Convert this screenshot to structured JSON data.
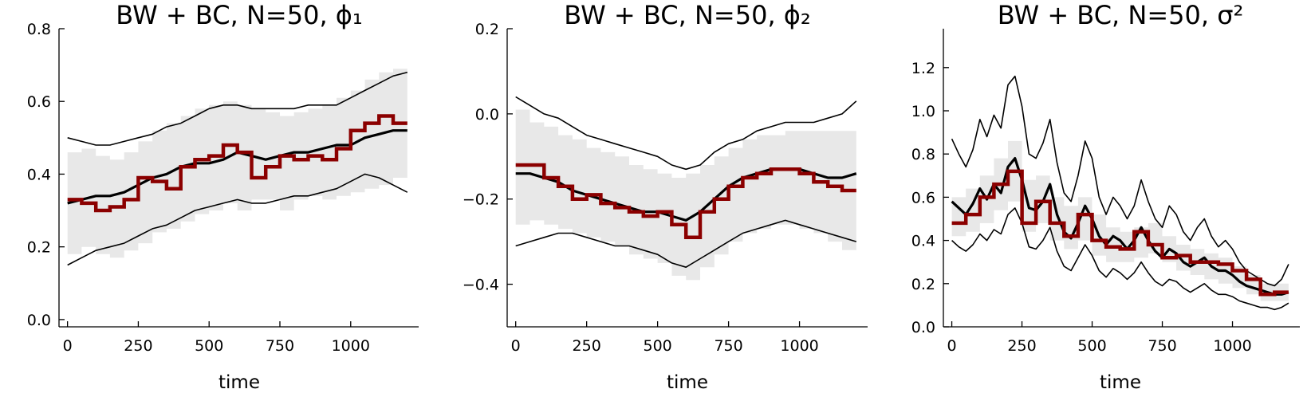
{
  "chart_data": [
    {
      "type": "line",
      "title": "BW + BC, N=50, ϕ₁",
      "xlabel": "time",
      "ylabel": "",
      "xlim": [
        -30,
        1240
      ],
      "ylim": [
        -0.02,
        0.8
      ],
      "xticks": [
        0,
        250,
        500,
        750,
        1000
      ],
      "xtick_labels": [
        "0",
        "250",
        "500",
        "750",
        "1000"
      ],
      "yticks": [
        0.0,
        0.2,
        0.4,
        0.6,
        0.8
      ],
      "ytick_labels": [
        "0.0",
        "0.2",
        "0.4",
        "0.6",
        "0.8"
      ],
      "grid": false,
      "legend": "none",
      "band_step": 50,
      "band_x": [
        0,
        1200
      ],
      "band_lower": [
        0.18,
        0.2,
        0.18,
        0.17,
        0.19,
        0.21,
        0.24,
        0.25,
        0.27,
        0.29,
        0.3,
        0.32,
        0.3,
        0.33,
        0.33,
        0.3,
        0.33,
        0.34,
        0.33,
        0.34,
        0.35,
        0.36,
        0.37,
        0.39
      ],
      "band_upper": [
        0.46,
        0.47,
        0.45,
        0.44,
        0.46,
        0.49,
        0.52,
        0.54,
        0.56,
        0.58,
        0.59,
        0.6,
        0.59,
        0.58,
        0.57,
        0.56,
        0.57,
        0.58,
        0.59,
        0.61,
        0.63,
        0.66,
        0.68,
        0.69
      ],
      "series": [
        {
          "role": "upper",
          "color": "#000000",
          "x": [
            0,
            50,
            100,
            150,
            200,
            250,
            300,
            350,
            400,
            450,
            500,
            550,
            600,
            650,
            700,
            750,
            800,
            850,
            900,
            950,
            1000,
            1050,
            1100,
            1150,
            1200
          ],
          "values": [
            0.5,
            0.49,
            0.48,
            0.48,
            0.49,
            0.5,
            0.51,
            0.53,
            0.54,
            0.56,
            0.58,
            0.59,
            0.59,
            0.58,
            0.58,
            0.58,
            0.58,
            0.59,
            0.59,
            0.59,
            0.61,
            0.63,
            0.65,
            0.67,
            0.68
          ]
        },
        {
          "role": "mean",
          "color": "#000000",
          "x": [
            0,
            50,
            100,
            150,
            200,
            250,
            300,
            350,
            400,
            450,
            500,
            550,
            600,
            650,
            700,
            750,
            800,
            850,
            900,
            950,
            1000,
            1050,
            1100,
            1150,
            1200
          ],
          "values": [
            0.32,
            0.33,
            0.34,
            0.34,
            0.35,
            0.37,
            0.39,
            0.4,
            0.42,
            0.43,
            0.43,
            0.44,
            0.46,
            0.45,
            0.44,
            0.45,
            0.46,
            0.46,
            0.47,
            0.48,
            0.48,
            0.5,
            0.51,
            0.52,
            0.52
          ]
        },
        {
          "role": "lower",
          "color": "#000000",
          "x": [
            0,
            50,
            100,
            150,
            200,
            250,
            300,
            350,
            400,
            450,
            500,
            550,
            600,
            650,
            700,
            750,
            800,
            850,
            900,
            950,
            1000,
            1050,
            1100,
            1150,
            1200
          ],
          "values": [
            0.15,
            0.17,
            0.19,
            0.2,
            0.21,
            0.23,
            0.25,
            0.26,
            0.28,
            0.3,
            0.31,
            0.32,
            0.33,
            0.32,
            0.32,
            0.33,
            0.34,
            0.34,
            0.35,
            0.36,
            0.38,
            0.4,
            0.39,
            0.37,
            0.35
          ]
        },
        {
          "role": "step",
          "color": "#8b0000",
          "x": [
            0,
            50,
            100,
            150,
            200,
            250,
            300,
            350,
            400,
            450,
            500,
            550,
            600,
            650,
            700,
            750,
            800,
            850,
            900,
            950,
            1000,
            1050,
            1100,
            1150,
            1200
          ],
          "values": [
            0.33,
            0.32,
            0.3,
            0.31,
            0.33,
            0.39,
            0.38,
            0.36,
            0.42,
            0.44,
            0.45,
            0.48,
            0.46,
            0.39,
            0.42,
            0.45,
            0.44,
            0.45,
            0.44,
            0.47,
            0.52,
            0.54,
            0.56,
            0.54,
            0.54
          ]
        }
      ]
    },
    {
      "type": "line",
      "title": "BW + BC, N=50, ϕ₂",
      "xlabel": "time",
      "ylabel": "",
      "xlim": [
        -30,
        1240
      ],
      "ylim": [
        -0.5,
        0.2
      ],
      "xticks": [
        0,
        250,
        500,
        750,
        1000
      ],
      "xtick_labels": [
        "0",
        "250",
        "500",
        "750",
        "1000"
      ],
      "yticks": [
        -0.4,
        -0.2,
        0.0,
        0.2
      ],
      "ytick_labels": [
        "−0.4",
        "−0.2",
        "0.0",
        "0.2"
      ],
      "grid": false,
      "legend": "none",
      "band_step": 50,
      "band_x": [
        0,
        1200
      ],
      "band_lower": [
        -0.26,
        -0.25,
        -0.26,
        -0.27,
        -0.28,
        -0.29,
        -0.3,
        -0.31,
        -0.33,
        -0.34,
        -0.35,
        -0.38,
        -0.39,
        -0.36,
        -0.33,
        -0.3,
        -0.28,
        -0.27,
        -0.26,
        -0.26,
        -0.27,
        -0.28,
        -0.3,
        -0.32
      ],
      "band_upper": [
        0.01,
        -0.02,
        -0.03,
        -0.05,
        -0.06,
        -0.08,
        -0.09,
        -0.1,
        -0.12,
        -0.13,
        -0.14,
        -0.15,
        -0.14,
        -0.12,
        -0.1,
        -0.08,
        -0.06,
        -0.05,
        -0.05,
        -0.04,
        -0.04,
        -0.04,
        -0.04,
        -0.04
      ],
      "series": [
        {
          "role": "upper",
          "color": "#000000",
          "x": [
            0,
            50,
            100,
            150,
            200,
            250,
            300,
            350,
            400,
            450,
            500,
            550,
            600,
            650,
            700,
            750,
            800,
            850,
            900,
            950,
            1000,
            1050,
            1100,
            1150,
            1200
          ],
          "values": [
            0.04,
            0.02,
            0.0,
            -0.01,
            -0.03,
            -0.05,
            -0.06,
            -0.07,
            -0.08,
            -0.09,
            -0.1,
            -0.12,
            -0.13,
            -0.12,
            -0.09,
            -0.07,
            -0.06,
            -0.04,
            -0.03,
            -0.02,
            -0.02,
            -0.02,
            -0.01,
            0.0,
            0.03
          ]
        },
        {
          "role": "mean",
          "color": "#000000",
          "x": [
            0,
            50,
            100,
            150,
            200,
            250,
            300,
            350,
            400,
            450,
            500,
            550,
            600,
            650,
            700,
            750,
            800,
            850,
            900,
            950,
            1000,
            1050,
            1100,
            1150,
            1200
          ],
          "values": [
            -0.14,
            -0.14,
            -0.15,
            -0.16,
            -0.18,
            -0.19,
            -0.2,
            -0.21,
            -0.22,
            -0.23,
            -0.23,
            -0.24,
            -0.25,
            -0.23,
            -0.2,
            -0.17,
            -0.15,
            -0.14,
            -0.13,
            -0.13,
            -0.13,
            -0.14,
            -0.15,
            -0.15,
            -0.14
          ]
        },
        {
          "role": "lower",
          "color": "#000000",
          "x": [
            0,
            50,
            100,
            150,
            200,
            250,
            300,
            350,
            400,
            450,
            500,
            550,
            600,
            650,
            700,
            750,
            800,
            850,
            900,
            950,
            1000,
            1050,
            1100,
            1150,
            1200
          ],
          "values": [
            -0.31,
            -0.3,
            -0.29,
            -0.28,
            -0.28,
            -0.29,
            -0.3,
            -0.31,
            -0.31,
            -0.32,
            -0.33,
            -0.35,
            -0.36,
            -0.34,
            -0.32,
            -0.3,
            -0.28,
            -0.27,
            -0.26,
            -0.25,
            -0.26,
            -0.27,
            -0.28,
            -0.29,
            -0.3
          ]
        },
        {
          "role": "step",
          "color": "#8b0000",
          "x": [
            0,
            50,
            100,
            150,
            200,
            250,
            300,
            350,
            400,
            450,
            500,
            550,
            600,
            650,
            700,
            750,
            800,
            850,
            900,
            950,
            1000,
            1050,
            1100,
            1150,
            1200
          ],
          "values": [
            -0.12,
            -0.12,
            -0.15,
            -0.17,
            -0.2,
            -0.19,
            -0.21,
            -0.22,
            -0.23,
            -0.24,
            -0.23,
            -0.26,
            -0.29,
            -0.23,
            -0.2,
            -0.17,
            -0.15,
            -0.14,
            -0.13,
            -0.13,
            -0.14,
            -0.16,
            -0.17,
            -0.18,
            -0.18
          ]
        }
      ]
    },
    {
      "type": "line",
      "title": "BW + BC, N=50, σ²",
      "xlabel": "time",
      "ylabel": "",
      "xlim": [
        -30,
        1240
      ],
      "ylim": [
        0.0,
        1.38
      ],
      "xticks": [
        0,
        250,
        500,
        750,
        1000
      ],
      "xtick_labels": [
        "0",
        "250",
        "500",
        "750",
        "1000"
      ],
      "yticks": [
        0.0,
        0.2,
        0.4,
        0.6,
        0.8,
        1.0,
        1.2
      ],
      "ytick_labels": [
        "0.0",
        "0.2",
        "0.4",
        "0.6",
        "0.8",
        "1.0",
        "1.2"
      ],
      "grid": false,
      "legend": "none",
      "band_step": 50,
      "band_x": [
        0,
        1200
      ],
      "band_lower": [
        0.42,
        0.44,
        0.48,
        0.54,
        0.58,
        0.44,
        0.48,
        0.4,
        0.36,
        0.4,
        0.33,
        0.3,
        0.3,
        0.32,
        0.34,
        0.3,
        0.26,
        0.24,
        0.22,
        0.2,
        0.18,
        0.15,
        0.12,
        0.12
      ],
      "band_upper": [
        0.6,
        0.64,
        0.7,
        0.78,
        0.86,
        0.68,
        0.7,
        0.6,
        0.56,
        0.6,
        0.52,
        0.46,
        0.44,
        0.46,
        0.48,
        0.42,
        0.38,
        0.36,
        0.34,
        0.32,
        0.28,
        0.24,
        0.2,
        0.2
      ],
      "series": [
        {
          "role": "upper",
          "color": "#000000",
          "x": [
            0,
            25,
            50,
            75,
            100,
            125,
            150,
            175,
            200,
            225,
            250,
            275,
            300,
            325,
            350,
            375,
            400,
            425,
            450,
            475,
            500,
            525,
            550,
            575,
            600,
            625,
            650,
            675,
            700,
            725,
            750,
            775,
            800,
            825,
            850,
            875,
            900,
            925,
            950,
            975,
            1000,
            1025,
            1050,
            1075,
            1100,
            1125,
            1150,
            1175,
            1200
          ],
          "values": [
            0.87,
            0.8,
            0.74,
            0.82,
            0.96,
            0.88,
            0.98,
            0.92,
            1.12,
            1.16,
            1.02,
            0.8,
            0.78,
            0.85,
            0.96,
            0.76,
            0.62,
            0.58,
            0.7,
            0.86,
            0.78,
            0.6,
            0.52,
            0.6,
            0.56,
            0.5,
            0.56,
            0.68,
            0.58,
            0.5,
            0.46,
            0.56,
            0.52,
            0.44,
            0.4,
            0.46,
            0.5,
            0.42,
            0.37,
            0.4,
            0.36,
            0.3,
            0.26,
            0.24,
            0.22,
            0.2,
            0.19,
            0.22,
            0.29
          ]
        },
        {
          "role": "mean",
          "color": "#000000",
          "x": [
            0,
            25,
            50,
            75,
            100,
            125,
            150,
            175,
            200,
            225,
            250,
            275,
            300,
            325,
            350,
            375,
            400,
            425,
            450,
            475,
            500,
            525,
            550,
            575,
            600,
            625,
            650,
            675,
            700,
            725,
            750,
            775,
            800,
            825,
            850,
            875,
            900,
            925,
            950,
            975,
            1000,
            1025,
            1050,
            1075,
            1100,
            1125,
            1150,
            1175,
            1200
          ],
          "values": [
            0.58,
            0.55,
            0.52,
            0.57,
            0.64,
            0.59,
            0.66,
            0.62,
            0.74,
            0.78,
            0.68,
            0.55,
            0.54,
            0.58,
            0.66,
            0.52,
            0.44,
            0.41,
            0.48,
            0.56,
            0.5,
            0.42,
            0.38,
            0.42,
            0.4,
            0.36,
            0.4,
            0.46,
            0.4,
            0.35,
            0.32,
            0.36,
            0.34,
            0.3,
            0.28,
            0.3,
            0.32,
            0.28,
            0.26,
            0.26,
            0.24,
            0.21,
            0.19,
            0.18,
            0.17,
            0.16,
            0.15,
            0.15,
            0.16
          ]
        },
        {
          "role": "lower",
          "color": "#000000",
          "x": [
            0,
            25,
            50,
            75,
            100,
            125,
            150,
            175,
            200,
            225,
            250,
            275,
            300,
            325,
            350,
            375,
            400,
            425,
            450,
            475,
            500,
            525,
            550,
            575,
            600,
            625,
            650,
            675,
            700,
            725,
            750,
            775,
            800,
            825,
            850,
            875,
            900,
            925,
            950,
            975,
            1000,
            1025,
            1050,
            1075,
            1100,
            1125,
            1150,
            1175,
            1200
          ],
          "values": [
            0.4,
            0.37,
            0.35,
            0.38,
            0.43,
            0.4,
            0.45,
            0.43,
            0.52,
            0.55,
            0.48,
            0.37,
            0.36,
            0.4,
            0.46,
            0.35,
            0.28,
            0.26,
            0.32,
            0.38,
            0.33,
            0.26,
            0.23,
            0.27,
            0.25,
            0.22,
            0.25,
            0.3,
            0.25,
            0.21,
            0.19,
            0.22,
            0.21,
            0.18,
            0.16,
            0.18,
            0.2,
            0.17,
            0.15,
            0.15,
            0.14,
            0.12,
            0.11,
            0.1,
            0.09,
            0.09,
            0.08,
            0.09,
            0.11
          ]
        },
        {
          "role": "step",
          "color": "#8b0000",
          "x": [
            0,
            50,
            100,
            150,
            200,
            250,
            300,
            350,
            400,
            450,
            500,
            550,
            600,
            650,
            700,
            750,
            800,
            850,
            900,
            950,
            1000,
            1050,
            1100,
            1150,
            1200
          ],
          "values": [
            0.48,
            0.52,
            0.6,
            0.66,
            0.72,
            0.48,
            0.58,
            0.48,
            0.42,
            0.52,
            0.4,
            0.37,
            0.36,
            0.44,
            0.38,
            0.32,
            0.33,
            0.3,
            0.3,
            0.29,
            0.26,
            0.22,
            0.15,
            0.16,
            0.16
          ]
        }
      ]
    }
  ]
}
